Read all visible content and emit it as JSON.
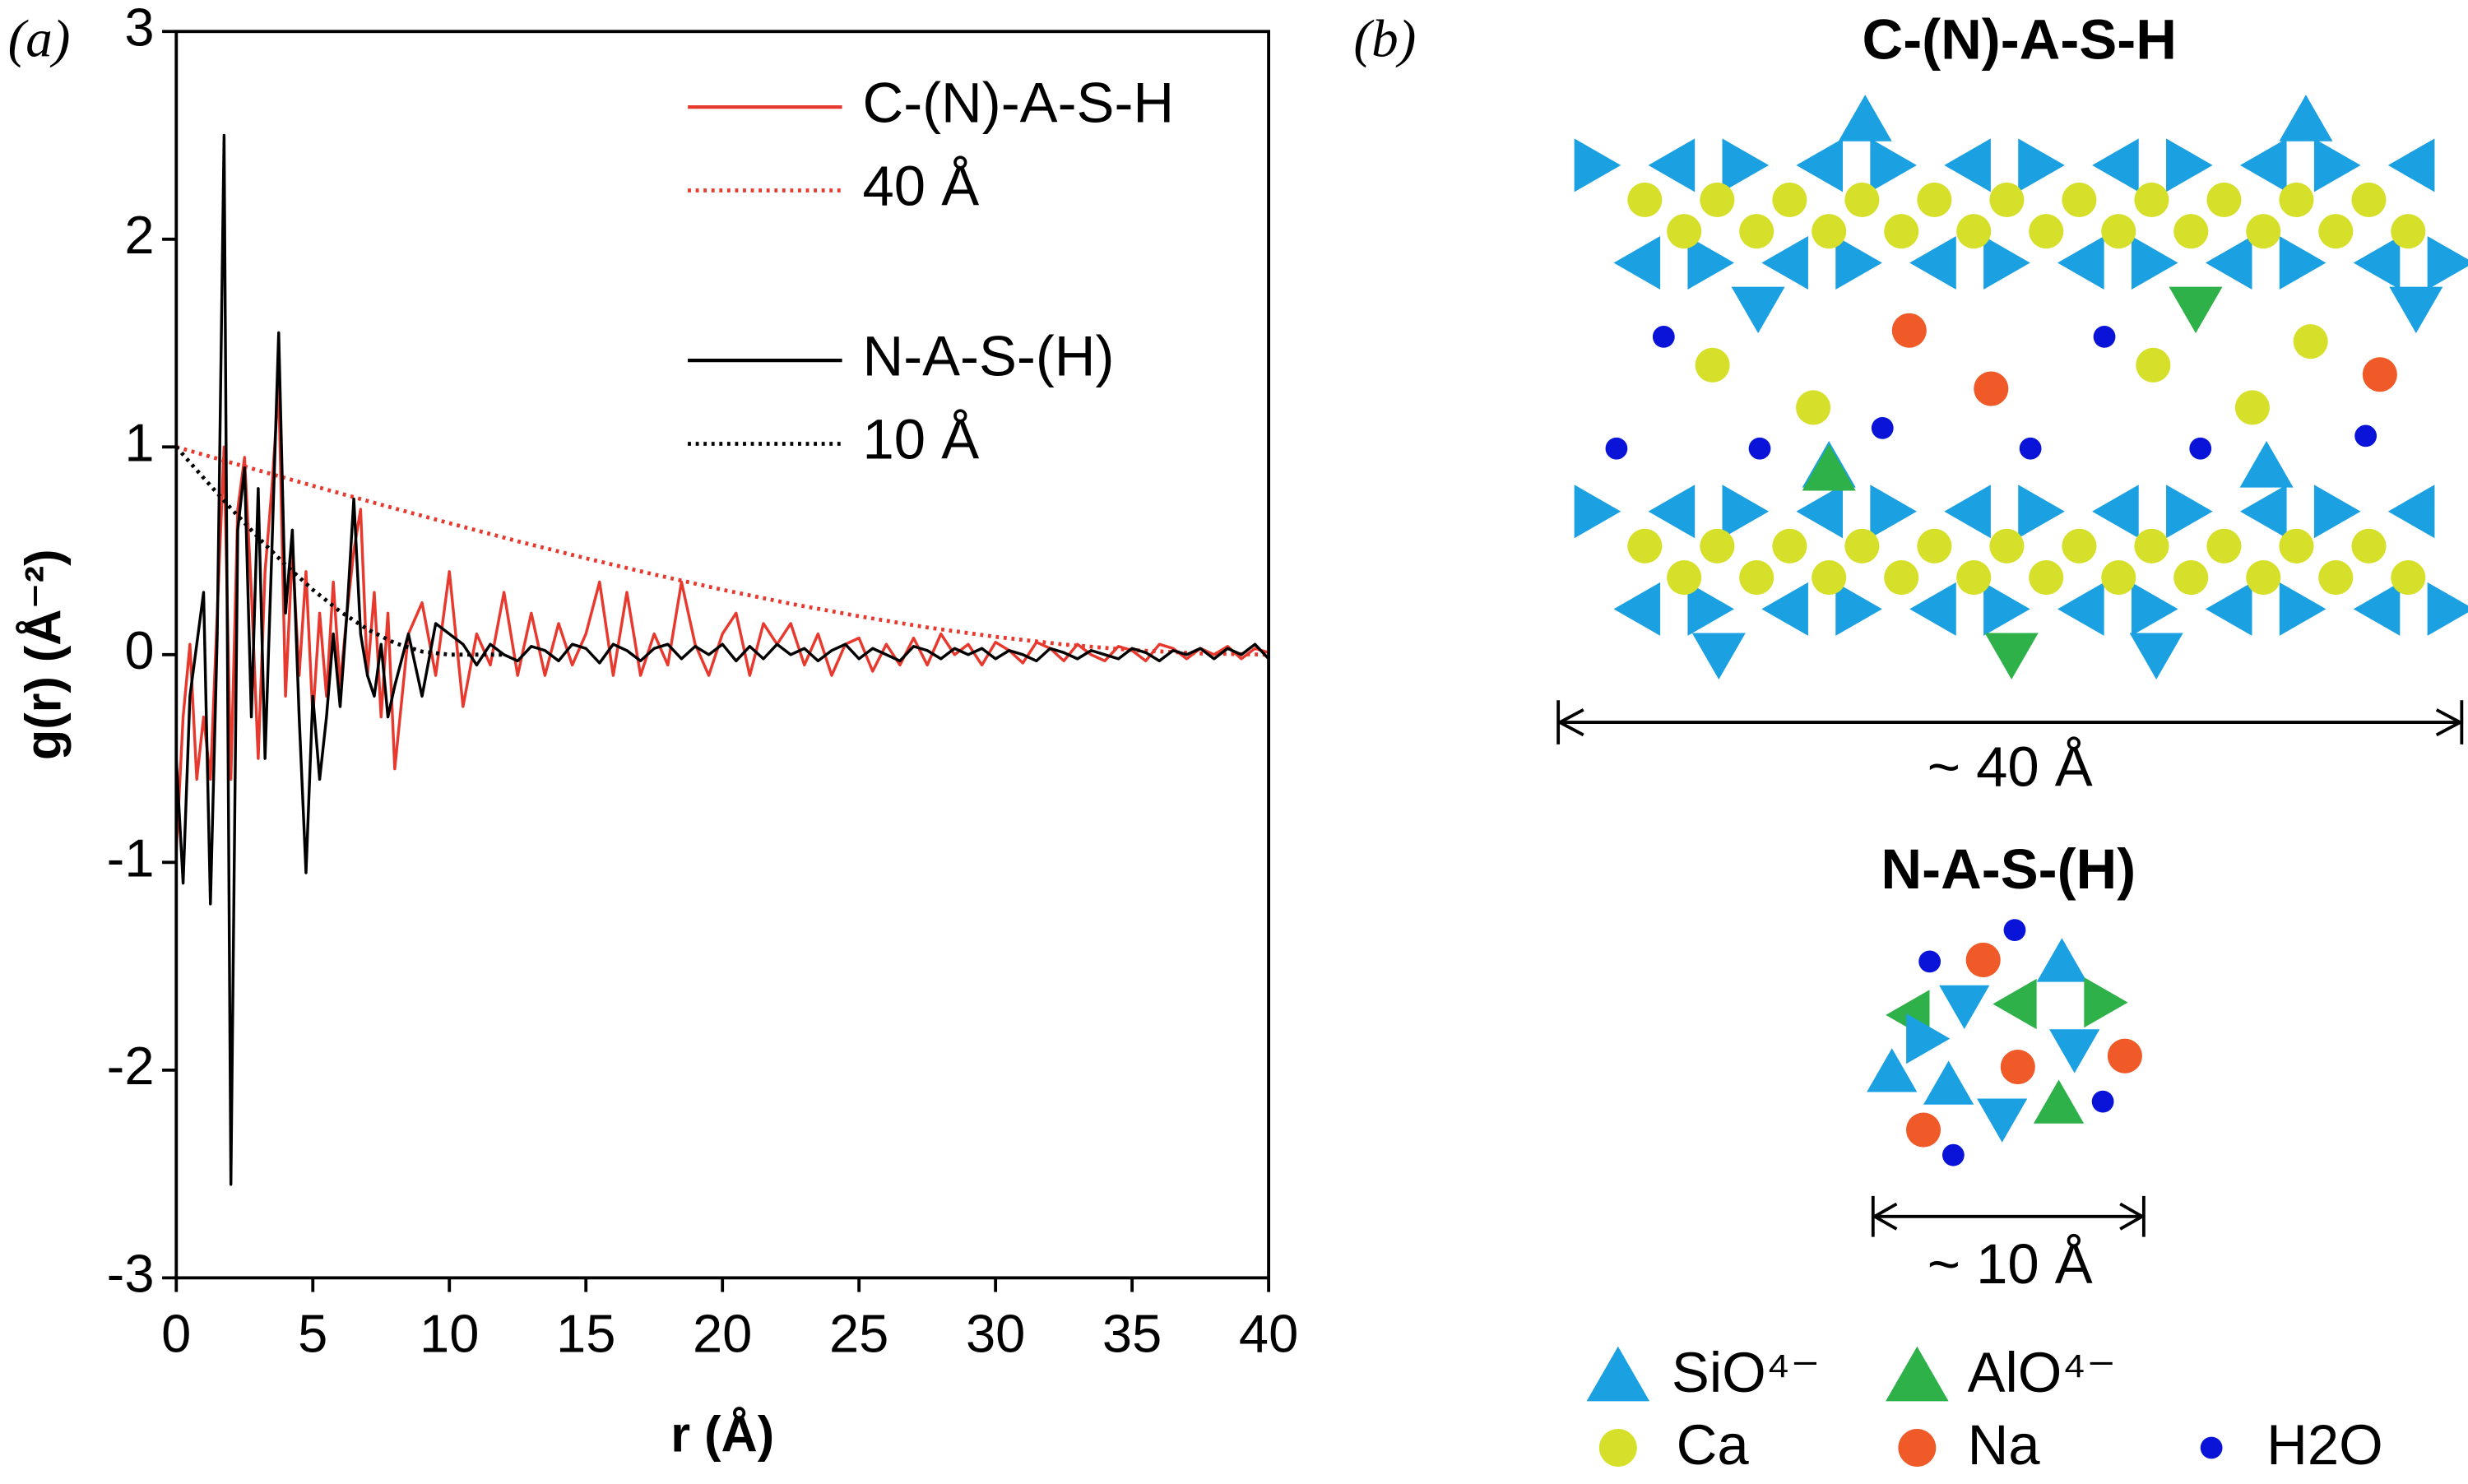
{
  "chart_data": {
    "type": "line",
    "panel_label": "(a)",
    "x_label": "r (Å)",
    "y_label": "g(r) (Å⁻²)",
    "xlim": [
      0,
      40
    ],
    "xticks": [
      0,
      5,
      10,
      15,
      20,
      25,
      30,
      35,
      40
    ],
    "ylim": [
      -3,
      3
    ],
    "yticks": [
      -3,
      -2,
      -1,
      0,
      1,
      2,
      3
    ],
    "legend": "upper right",
    "x": [
      0,
      0.25,
      0.5,
      0.75,
      1,
      1.25,
      1.5,
      1.75,
      2,
      2.25,
      2.5,
      2.75,
      3,
      3.25,
      3.5,
      3.75,
      4,
      4.25,
      4.5,
      4.75,
      5,
      5.25,
      5.5,
      5.75,
      6,
      6.25,
      6.5,
      6.75,
      7,
      7.25,
      7.5,
      7.75,
      8,
      8.5,
      9,
      9.5,
      10,
      10.5,
      11,
      11.5,
      12,
      12.5,
      13,
      13.5,
      14,
      14.5,
      15,
      15.5,
      16,
      16.5,
      17,
      17.5,
      18,
      18.5,
      19,
      19.5,
      20,
      20.5,
      21,
      21.5,
      22,
      22.5,
      23,
      23.5,
      24,
      24.5,
      25,
      25.5,
      26,
      26.5,
      27,
      27.5,
      28,
      28.5,
      29,
      29.5,
      30,
      30.5,
      31,
      31.5,
      32,
      32.5,
      33,
      33.5,
      34,
      34.5,
      35,
      35.5,
      36,
      36.5,
      37,
      37.5,
      38,
      38.5,
      39,
      39.5,
      40
    ],
    "series": [
      {
        "name": "C-(N)-A-S-H",
        "color": "#e8392e",
        "style": "solid",
        "values": [
          -0.95,
          -0.3,
          0.05,
          -0.6,
          -0.3,
          -0.6,
          0.2,
          1.0,
          -0.6,
          0.7,
          0.95,
          0.3,
          -0.5,
          0.4,
          0.8,
          1.3,
          -0.2,
          0.5,
          -0.1,
          0.4,
          -0.3,
          0.2,
          -0.2,
          0.35,
          -0.15,
          0.2,
          0.5,
          0.7,
          -0.1,
          0.3,
          -0.3,
          0.2,
          -0.55,
          0.1,
          0.25,
          -0.1,
          0.4,
          -0.25,
          0.1,
          -0.05,
          0.3,
          -0.1,
          0.2,
          -0.1,
          0.15,
          -0.05,
          0.1,
          0.35,
          -0.1,
          0.3,
          -0.1,
          0.1,
          -0.05,
          0.35,
          0.05,
          -0.1,
          0.1,
          0.2,
          -0.1,
          0.15,
          0.05,
          0.15,
          -0.05,
          0.1,
          -0.1,
          0.05,
          0.08,
          -0.08,
          0.05,
          -0.05,
          0.08,
          -0.05,
          0.1,
          0,
          0.05,
          -0.05,
          0.06,
          0.02,
          -0.04,
          0.06,
          0.03,
          -0.03,
          0.05,
          0,
          -0.03,
          0.04,
          0.02,
          -0.03,
          0.05,
          0.03,
          -0.02,
          0.03,
          0,
          0.04,
          -0.02,
          0.03,
          0.01
        ]
      },
      {
        "name": "40 Å",
        "color": "#e8392e",
        "style": "dotted",
        "x": [
          0,
          2.5,
          5,
          7.5,
          10,
          12.5,
          15,
          17.5,
          20,
          22.5,
          25,
          27.5,
          30,
          32.5,
          35,
          37.5,
          40
        ],
        "values": [
          1,
          0.906,
          0.813,
          0.722,
          0.633,
          0.546,
          0.464,
          0.386,
          0.3125,
          0.245,
          0.185,
          0.131,
          0.086,
          0.049,
          0.022,
          0.006,
          0
        ]
      },
      {
        "name": "N-A-S-(H)",
        "color": "#000000",
        "style": "solid",
        "values": [
          -0.5,
          -1.1,
          -0.2,
          0.05,
          0.3,
          -1.2,
          0.1,
          2.5,
          -2.55,
          0.6,
          0.9,
          -0.3,
          0.8,
          -0.5,
          0.5,
          1.55,
          0.2,
          0.6,
          -0.3,
          -1.05,
          -0.2,
          -0.6,
          -0.3,
          0.1,
          -0.25,
          0.2,
          0.75,
          0.1,
          -0.1,
          -0.2,
          0.05,
          -0.3,
          -0.15,
          0.1,
          -0.2,
          0.15,
          0.1,
          0.05,
          -0.05,
          0.05,
          0,
          -0.03,
          0.04,
          0.02,
          -0.03,
          0.05,
          0.03,
          -0.04,
          0.05,
          0.02,
          -0.03,
          0.03,
          0.05,
          -0.02,
          0.04,
          0,
          0.05,
          -0.03,
          0.04,
          -0.02,
          0.05,
          0,
          0.03,
          -0.03,
          0.02,
          0.05,
          -0.02,
          0.03,
          0,
          -0.03,
          0.04,
          0.02,
          -0.02,
          0.03,
          0,
          0.03,
          -0.02,
          0.02,
          0,
          -0.03,
          0.03,
          0.01,
          -0.02,
          0.02,
          0,
          -0.02,
          0.03,
          0.01,
          -0.03,
          0.02,
          0,
          0.03,
          -0.02,
          0.03,
          0,
          0.05,
          -0.02
        ]
      },
      {
        "name": "10 Å",
        "color": "#000000",
        "style": "dotted",
        "x": [
          0,
          1,
          2,
          3,
          4,
          5,
          6,
          7,
          8,
          9,
          10,
          12
        ],
        "values": [
          1,
          0.851,
          0.704,
          0.564,
          0.432,
          0.3125,
          0.208,
          0.122,
          0.056,
          0.015,
          0,
          0
        ]
      }
    ]
  },
  "diagram": {
    "panel_label": "(b)",
    "layer_title": "C-(N)-A-S-H",
    "layer_size": "~ 40 Å",
    "cluster_title": "N-A-S-(H)",
    "cluster_size": "~ 10 Å",
    "legend": [
      "SiO⁴⁻",
      "AlO⁴⁻",
      "Ca",
      "Na",
      "H2O"
    ]
  }
}
